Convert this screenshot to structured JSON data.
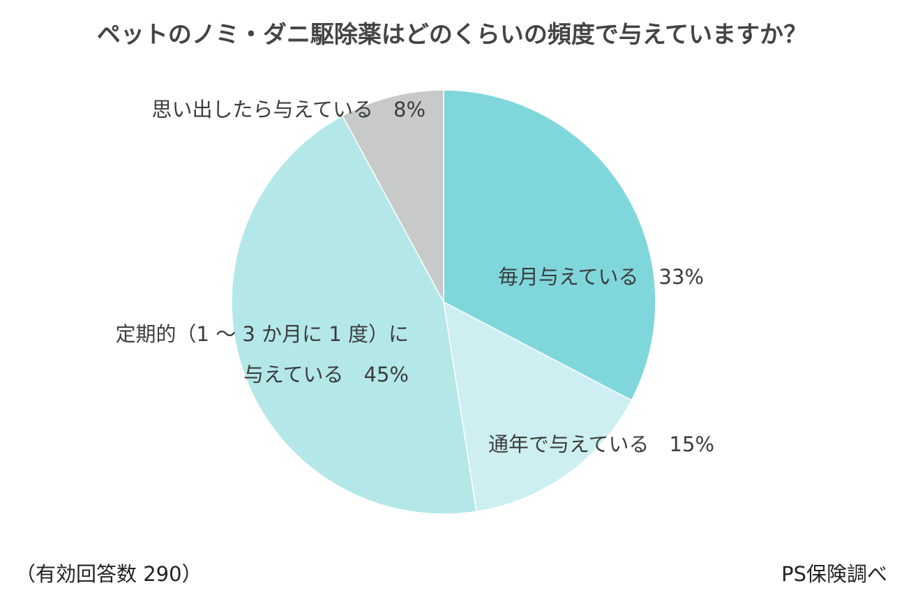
{
  "chart_data": {
    "type": "pie",
    "title": "ペットのノミ・ダニ駆除薬はどのくらいの頻度で与えていますか？",
    "slices": [
      {
        "label": "毎月与えている",
        "label_lines": [
          "毎月与えている　33%"
        ],
        "value": 33,
        "display": "33%",
        "color": "#7fd7dc"
      },
      {
        "label": "通年で与えている",
        "label_lines": [
          "通年で与えている　15%"
        ],
        "value": 15,
        "display": "15%",
        "color": "#cdeff1"
      },
      {
        "label": "定期的（1 〜 3 か月に 1 度）に与えている",
        "label_lines": [
          "定期的（1 〜 3 か月に 1 度）に",
          "与えている　45%"
        ],
        "value": 45,
        "display": "45%",
        "color": "#b4e7e8"
      },
      {
        "label": "思い出したら与えている",
        "label_lines": [
          "思い出したら与えている　8%"
        ],
        "value": 8,
        "display": "8%",
        "color": "#c8c9c9"
      }
    ],
    "start_angle_deg": 0,
    "direction": "clockwise"
  },
  "footnote": "（有効回答数 290）",
  "source": "PS保険調べ"
}
